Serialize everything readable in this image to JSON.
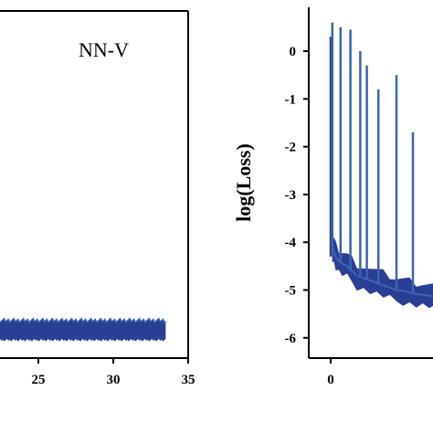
{
  "colors": {
    "series": "#2a3f93",
    "series_light": "#3b63b0",
    "axis": "#000000",
    "background": "#ffffff"
  },
  "chart_data": [
    {
      "type": "line",
      "annotation": "NN-V",
      "xlabel": "",
      "ylabel": "",
      "xlim": [
        0,
        35
      ],
      "x_ticks": [
        25,
        30,
        35
      ],
      "x_tick_labels": [
        "25",
        "30",
        "35"
      ],
      "grid": false,
      "series": [
        {
          "x": [
            0,
            2,
            4,
            6,
            8,
            10,
            12,
            14,
            16,
            18,
            20,
            22,
            24,
            26,
            28,
            30,
            32,
            33.5
          ],
          "band": 1,
          "note": "dense flat band near the bottom of the panel"
        }
      ]
    },
    {
      "type": "line",
      "xlabel": "",
      "ylabel": "log(Loss)",
      "ylim": [
        -6.2,
        0.9
      ],
      "y_ticks": [
        0,
        -1,
        -2,
        -3,
        -4,
        -5,
        -6
      ],
      "y_tick_labels": [
        "0",
        "-1",
        "-2",
        "-3",
        "-4",
        "-5",
        "-6"
      ],
      "x_ticks": [
        0
      ],
      "x_tick_labels": [
        "0"
      ],
      "xlim": [
        0,
        10
      ],
      "grid": false,
      "series": [
        {
          "x": [
            0,
            0.05,
            0.1,
            0.2,
            0.3,
            0.5,
            0.7,
            1.0,
            1.3,
            1.6,
            2.0,
            2.4,
            2.8,
            3.2,
            3.6,
            4.0,
            4.4,
            4.8,
            5.2,
            5.6,
            6.0,
            6.4,
            6.8,
            7.2,
            7.6,
            8.0,
            8.4,
            8.8,
            9.2,
            9.6,
            10.0
          ],
          "y": [
            -4.0,
            -3.7,
            -4.1,
            -4.2,
            -4.3,
            -4.4,
            -4.45,
            -4.5,
            -4.6,
            -4.7,
            -4.75,
            -4.8,
            -4.85,
            -4.9,
            -4.95,
            -5.0,
            -5.02,
            -5.05,
            -5.08,
            -5.1,
            -5.12,
            -5.14,
            -5.16,
            -5.18,
            -5.2,
            -5.22,
            -5.25,
            -5.28,
            -5.3,
            -5.35,
            -5.4
          ],
          "spikes": [
            {
              "x": 0.1,
              "y": 0.6
            },
            {
              "x": 0.6,
              "y": 0.5
            },
            {
              "x": 1.2,
              "y": 0.45
            },
            {
              "x": 1.8,
              "y": 0.0
            },
            {
              "x": 2.2,
              "y": -0.3
            },
            {
              "x": 2.9,
              "y": -0.8
            },
            {
              "x": 4.0,
              "y": -0.5
            },
            {
              "x": 5.0,
              "y": -1.7
            }
          ]
        }
      ]
    }
  ]
}
